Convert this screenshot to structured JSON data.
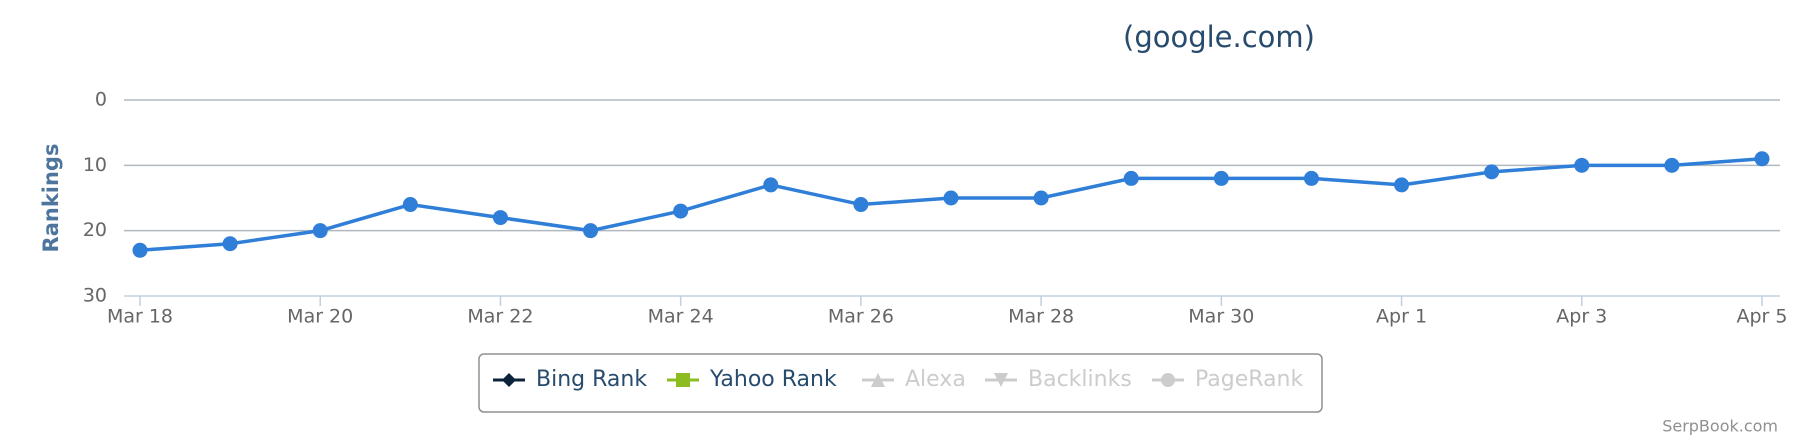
{
  "chart_data": {
    "type": "line",
    "title": "(google.com)",
    "y_label": "Rankings",
    "categories": [
      "Mar 18",
      null,
      "Mar 20",
      null,
      "Mar 22",
      null,
      "Mar 24",
      null,
      "Mar 26",
      null,
      "Mar 28",
      null,
      "Mar 30",
      null,
      "Apr 1",
      null,
      "Apr 3",
      null,
      "Apr 5"
    ],
    "series": [
      {
        "color": "#2f7ed8",
        "values": [
          23,
          22,
          20,
          16,
          18,
          20,
          17,
          13,
          16,
          15,
          15,
          12,
          12,
          12,
          13,
          11,
          10,
          10,
          9
        ]
      }
    ],
    "ylim": [
      0,
      30
    ],
    "y_reversed": true,
    "yticks": [
      0,
      10,
      20,
      30
    ],
    "grid": true,
    "legend": [
      {
        "name": "Bing Rank",
        "color": "#0d233a",
        "marker": "diamond",
        "visible": true
      },
      {
        "name": "Yahoo Rank",
        "color": "#8bbc21",
        "marker": "square",
        "visible": true
      },
      {
        "name": "Alexa",
        "color": "#cccccc",
        "marker": "triangle",
        "visible": false
      },
      {
        "name": "Backlinks",
        "color": "#cccccc",
        "marker": "triangle-down",
        "visible": false
      },
      {
        "name": "PageRank",
        "color": "#cccccc",
        "marker": "circle",
        "visible": false
      }
    ],
    "credit": "SerpBook.com"
  }
}
